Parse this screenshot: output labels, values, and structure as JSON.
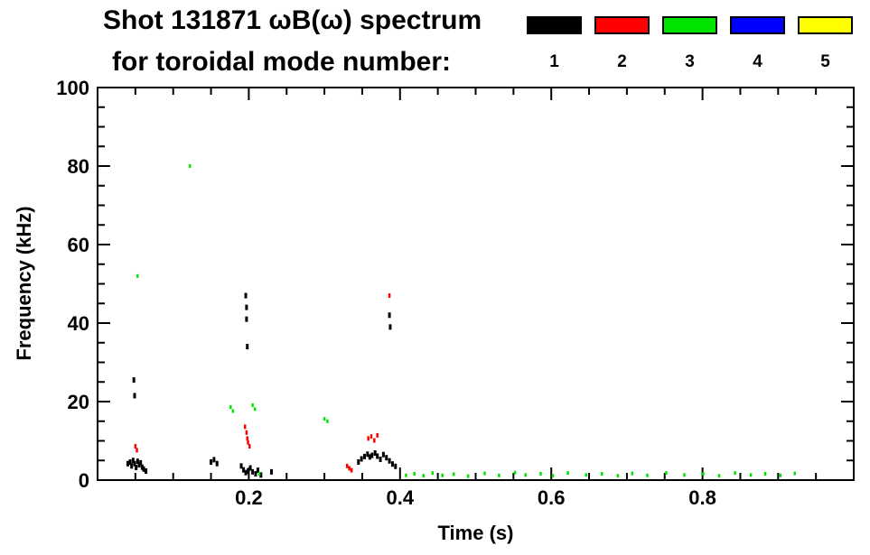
{
  "header": {
    "title_line1": "Shot 131871 ωB(ω) spectrum",
    "title_line2": "for toroidal mode number:"
  },
  "legend": {
    "items": [
      {
        "label": "1",
        "color": "#000000"
      },
      {
        "label": "2",
        "color": "#ff0000"
      },
      {
        "label": "3",
        "color": "#00e400"
      },
      {
        "label": "4",
        "color": "#0000ff"
      },
      {
        "label": "5",
        "color": "#ffff00"
      }
    ]
  },
  "chart_data": {
    "type": "scatter",
    "title": "Shot 131871 ωB(ω) spectrum for toroidal mode number:",
    "xlabel": "Time (s)",
    "ylabel": "Frequency (kHz)",
    "xlim": [
      0,
      1.0
    ],
    "ylim": [
      0,
      100
    ],
    "x_ticks": [
      {
        "v": 0.2,
        "label": "0.2"
      },
      {
        "v": 0.4,
        "label": "0.4"
      },
      {
        "v": 0.6,
        "label": "0.6"
      },
      {
        "v": 0.8,
        "label": "0.8"
      }
    ],
    "y_ticks": [
      {
        "v": 0,
        "label": "0"
      },
      {
        "v": 20,
        "label": "20"
      },
      {
        "v": 40,
        "label": "40"
      },
      {
        "v": 60,
        "label": "60"
      },
      {
        "v": 80,
        "label": "80"
      },
      {
        "v": 100,
        "label": "100"
      }
    ],
    "x_minor_step": 0.05,
    "y_minor_step": 5,
    "grid": false,
    "legend_position": "top-right",
    "series": [
      {
        "name": "n=1",
        "color": "#000000",
        "mark": {
          "w": 3,
          "h": 6
        },
        "points": [
          [
            0.04,
            4.2
          ],
          [
            0.043,
            4.6
          ],
          [
            0.045,
            3.6
          ],
          [
            0.047,
            5.0
          ],
          [
            0.049,
            4.2
          ],
          [
            0.051,
            3.2
          ],
          [
            0.053,
            4.8
          ],
          [
            0.055,
            3.9
          ],
          [
            0.057,
            4.4
          ],
          [
            0.059,
            3.3
          ],
          [
            0.061,
            2.8
          ],
          [
            0.064,
            2.3
          ],
          [
            0.048,
            25.5
          ],
          [
            0.049,
            21.5
          ],
          [
            0.15,
            4.6
          ],
          [
            0.154,
            5.2
          ],
          [
            0.158,
            4.2
          ],
          [
            0.19,
            3.6
          ],
          [
            0.193,
            2.6
          ],
          [
            0.196,
            1.9
          ],
          [
            0.199,
            2.3
          ],
          [
            0.202,
            3.1
          ],
          [
            0.205,
            2.1
          ],
          [
            0.209,
            1.6
          ],
          [
            0.212,
            2.5
          ],
          [
            0.216,
            1.3
          ],
          [
            0.196,
            47.0
          ],
          [
            0.197,
            44.0
          ],
          [
            0.197,
            41.0
          ],
          [
            0.198,
            34.0
          ],
          [
            0.23,
            2.1
          ],
          [
            0.345,
            4.6
          ],
          [
            0.349,
            5.4
          ],
          [
            0.353,
            6.0
          ],
          [
            0.357,
            6.6
          ],
          [
            0.36,
            5.9
          ],
          [
            0.363,
            6.3
          ],
          [
            0.367,
            6.9
          ],
          [
            0.37,
            6.1
          ],
          [
            0.374,
            5.3
          ],
          [
            0.378,
            6.5
          ],
          [
            0.382,
            5.7
          ],
          [
            0.386,
            4.9
          ],
          [
            0.39,
            4.1
          ],
          [
            0.394,
            3.5
          ],
          [
            0.386,
            42.0
          ],
          [
            0.387,
            39.0
          ]
        ]
      },
      {
        "name": "n=2",
        "color": "#ff0000",
        "mark": {
          "w": 2.5,
          "h": 5
        },
        "points": [
          [
            0.05,
            8.6
          ],
          [
            0.052,
            7.6
          ],
          [
            0.195,
            13.6
          ],
          [
            0.197,
            12.1
          ],
          [
            0.198,
            10.6
          ],
          [
            0.199,
            9.6
          ],
          [
            0.201,
            8.6
          ],
          [
            0.33,
            3.6
          ],
          [
            0.333,
            3.0
          ],
          [
            0.336,
            2.5
          ],
          [
            0.358,
            10.6
          ],
          [
            0.362,
            11.1
          ],
          [
            0.366,
            10.1
          ],
          [
            0.37,
            11.4
          ],
          [
            0.386,
            47.0
          ]
        ]
      },
      {
        "name": "n=3",
        "color": "#00e400",
        "mark": {
          "w": 2.5,
          "h": 4
        },
        "points": [
          [
            0.053,
            52.0
          ],
          [
            0.122,
            80.0
          ],
          [
            0.176,
            18.6
          ],
          [
            0.179,
            17.6
          ],
          [
            0.205,
            19.1
          ],
          [
            0.208,
            18.1
          ],
          [
            0.214,
            1.6
          ],
          [
            0.3,
            15.6
          ],
          [
            0.304,
            15.0
          ],
          [
            0.408,
            1.2
          ],
          [
            0.419,
            1.6
          ],
          [
            0.431,
            1.1
          ],
          [
            0.443,
            1.8
          ],
          [
            0.456,
            1.2
          ],
          [
            0.471,
            1.5
          ],
          [
            0.49,
            1.0
          ],
          [
            0.512,
            1.7
          ],
          [
            0.531,
            1.2
          ],
          [
            0.552,
            1.9
          ],
          [
            0.566,
            1.3
          ],
          [
            0.586,
            1.6
          ],
          [
            0.602,
            1.1
          ],
          [
            0.622,
            1.8
          ],
          [
            0.646,
            1.3
          ],
          [
            0.667,
            1.6
          ],
          [
            0.688,
            1.1
          ],
          [
            0.707,
            1.7
          ],
          [
            0.727,
            1.2
          ],
          [
            0.752,
            1.8
          ],
          [
            0.776,
            1.3
          ],
          [
            0.801,
            1.6
          ],
          [
            0.822,
            1.1
          ],
          [
            0.843,
            1.8
          ],
          [
            0.864,
            1.3
          ],
          [
            0.883,
            1.6
          ],
          [
            0.903,
            1.2
          ],
          [
            0.922,
            1.7
          ]
        ]
      },
      {
        "name": "n=4",
        "color": "#0000ff",
        "mark": {
          "w": 2.5,
          "h": 4
        },
        "points": []
      },
      {
        "name": "n=5",
        "color": "#ffff00",
        "mark": {
          "w": 2.5,
          "h": 4
        },
        "points": []
      }
    ]
  }
}
